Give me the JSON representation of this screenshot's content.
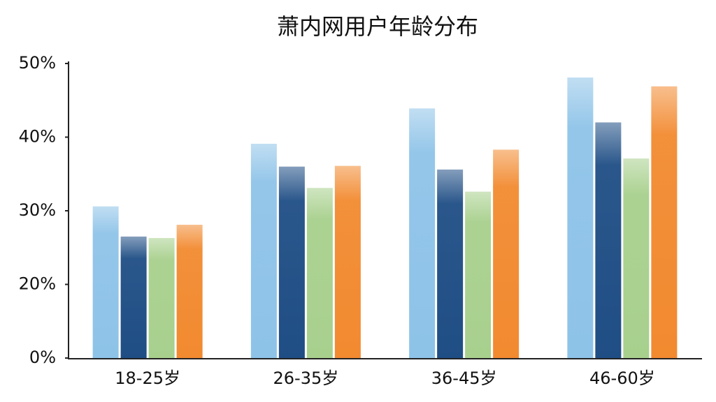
{
  "chart_data": {
    "type": "bar",
    "title": "萧内网用户年龄分布",
    "categories": [
      "18-25岁",
      "26-35岁",
      "36-45岁",
      "46-60岁"
    ],
    "series": [
      {
        "color": "#8ec3e8",
        "values": [
          30.6,
          39.1,
          43.9,
          48.1
        ]
      },
      {
        "color": "#1f4e85",
        "values": [
          26.5,
          36.0,
          35.6,
          42.0
        ]
      },
      {
        "color": "#a8d08d",
        "values": [
          26.3,
          33.1,
          32.6,
          37.1
        ]
      },
      {
        "color": "#f28a30",
        "values": [
          28.1,
          36.1,
          38.3,
          46.9
        ]
      }
    ],
    "ylim": [
      0,
      50
    ],
    "yticks": [
      {
        "value": 0,
        "label": "0%"
      },
      {
        "value": 20,
        "label": "20%"
      },
      {
        "value": 30,
        "label": "30%"
      },
      {
        "value": 40,
        "label": "40%"
      },
      {
        "value": 50,
        "label": "50%"
      }
    ],
    "grid": false
  }
}
